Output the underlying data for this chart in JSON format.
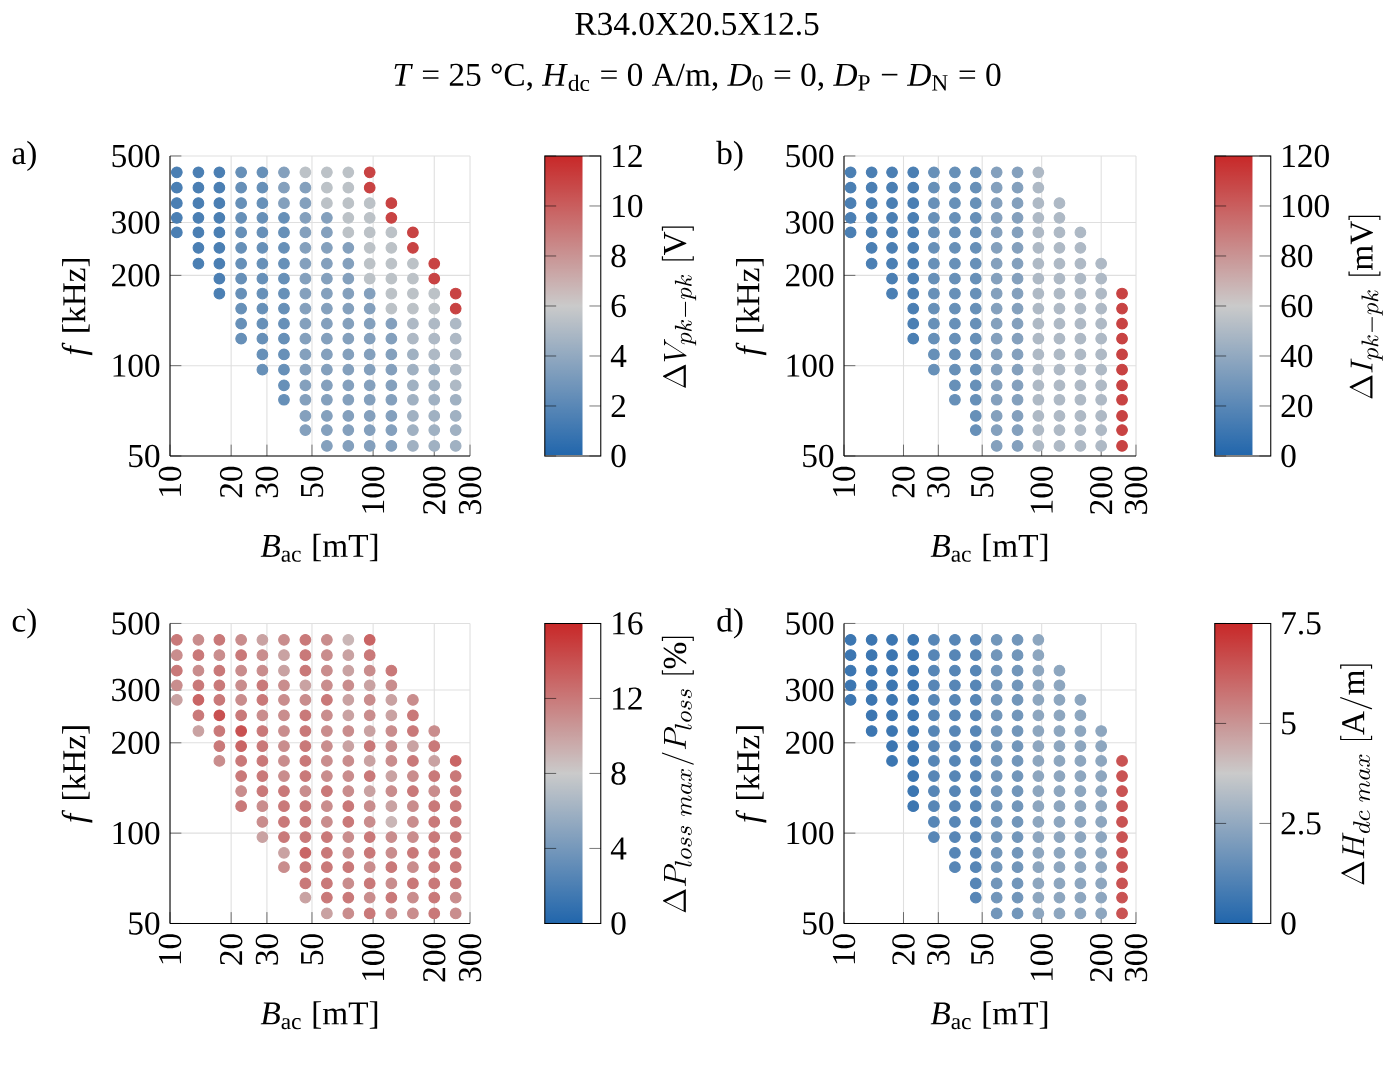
{
  "chart_data": [
    {
      "type": "other",
      "title": "R34.0X20.5X12.5",
      "subtitle": "*T* = 25 °C, *H*$_{dc}$ = 0 A/m, *D*$_{0}$ = 0, *D*$_{P}$ − *D*$_{N}$ = 0"
    },
    {
      "type": "scatter",
      "annotations": [
        "a)"
      ],
      "xlabel": "*B*$_{ac}$ [mT]",
      "ylabel": "*f* [kHz]",
      "clabel": "\\Delta V_{pk-pk}\\ [\\mathrm{V}]",
      "log": "xy",
      "grid": true,
      "marker": "circle",
      "xlim": [
        10,
        300
      ],
      "ylim": [
        50,
        500
      ],
      "xticks": [
        10,
        20,
        30,
        50,
        100,
        200,
        300
      ],
      "yticks": [
        50,
        100,
        200,
        300,
        500
      ],
      "clim": [
        0,
        12
      ],
      "cticks": [
        0,
        2,
        4,
        6,
        8,
        10,
        12
      ],
      "x": [
        10.8,
        13.8,
        17.5,
        22.4,
        28.5,
        36.4,
        46.4,
        59.2,
        75.5,
        96.2,
        10.8,
        13.8,
        17.5,
        22.4,
        28.5,
        36.4,
        46.4,
        59.2,
        75.5,
        96.2,
        10.8,
        13.8,
        17.5,
        22.4,
        28.5,
        36.4,
        46.4,
        59.2,
        75.5,
        96.2,
        123,
        10.8,
        13.8,
        17.5,
        22.4,
        28.5,
        36.4,
        46.4,
        59.2,
        75.5,
        96.2,
        123,
        10.8,
        13.8,
        17.5,
        22.4,
        28.5,
        36.4,
        46.4,
        59.2,
        75.5,
        96.2,
        123,
        157,
        13.8,
        17.5,
        22.4,
        28.5,
        36.4,
        46.4,
        59.2,
        75.5,
        96.2,
        123,
        157,
        13.8,
        17.5,
        22.4,
        28.5,
        36.4,
        46.4,
        59.2,
        75.5,
        96.2,
        123,
        157,
        200,
        17.5,
        22.4,
        28.5,
        36.4,
        46.4,
        59.2,
        75.5,
        96.2,
        123,
        157,
        200,
        17.5,
        22.4,
        28.5,
        36.4,
        46.4,
        59.2,
        75.5,
        96.2,
        123,
        157,
        200,
        255,
        22.4,
        28.5,
        36.4,
        46.4,
        59.2,
        75.5,
        96.2,
        123,
        157,
        200,
        255,
        22.4,
        28.5,
        36.4,
        46.4,
        59.2,
        75.5,
        96.2,
        123,
        157,
        200,
        255,
        22.4,
        28.5,
        36.4,
        46.4,
        59.2,
        75.5,
        96.2,
        123,
        157,
        200,
        255,
        28.5,
        36.4,
        46.4,
        59.2,
        75.5,
        96.2,
        123,
        157,
        200,
        255,
        28.5,
        36.4,
        46.4,
        59.2,
        75.5,
        96.2,
        123,
        157,
        200,
        255,
        36.4,
        46.4,
        59.2,
        75.5,
        96.2,
        123,
        157,
        200,
        255,
        36.4,
        46.4,
        59.2,
        75.5,
        96.2,
        123,
        157,
        200,
        255,
        46.4,
        59.2,
        75.5,
        96.2,
        123,
        157,
        200,
        255,
        46.4,
        59.2,
        75.5,
        96.2,
        123,
        157,
        200,
        255,
        59.2,
        75.5,
        96.2,
        123,
        157,
        200,
        255
      ],
      "values": [
        441,
        441,
        441,
        441,
        441,
        441,
        441,
        441,
        441,
        441,
        392,
        392,
        392,
        392,
        392,
        392,
        392,
        392,
        392,
        392,
        348,
        348,
        348,
        348,
        348,
        348,
        348,
        348,
        348,
        348,
        348,
        311,
        311,
        311,
        311,
        311,
        311,
        311,
        311,
        311,
        311,
        311,
        278,
        278,
        278,
        278,
        278,
        278,
        278,
        278,
        278,
        278,
        278,
        278,
        247,
        247,
        247,
        247,
        247,
        247,
        247,
        247,
        247,
        247,
        247,
        219,
        219,
        219,
        219,
        219,
        219,
        219,
        219,
        219,
        219,
        219,
        219,
        195,
        195,
        195,
        195,
        195,
        195,
        195,
        195,
        195,
        195,
        195,
        174,
        174,
        174,
        174,
        174,
        174,
        174,
        174,
        174,
        174,
        174,
        174,
        155,
        155,
        155,
        155,
        155,
        155,
        155,
        155,
        155,
        155,
        155,
        138,
        138,
        138,
        138,
        138,
        138,
        138,
        138,
        138,
        138,
        138,
        123,
        123,
        123,
        123,
        123,
        123,
        123,
        123,
        123,
        123,
        123,
        109,
        109,
        109,
        109,
        109,
        109,
        109,
        109,
        109,
        109,
        97,
        97,
        97,
        97,
        97,
        97,
        97,
        97,
        97,
        97,
        86,
        86,
        86,
        86,
        86,
        86,
        86,
        86,
        86,
        77,
        77,
        77,
        77,
        77,
        77,
        77,
        77,
        77,
        68,
        68,
        68,
        68,
        68,
        68,
        68,
        68,
        61,
        61,
        61,
        61,
        61,
        61,
        61,
        61,
        54,
        54,
        54,
        54,
        54,
        54,
        54
      ],
      "cvalues": [
        1.5,
        1.5,
        1.5,
        2.5,
        2.5,
        3.5,
        5.5,
        5.5,
        5.5,
        11,
        1.5,
        1.5,
        1.5,
        2.5,
        2.5,
        3.5,
        3.5,
        5.5,
        5.5,
        11,
        1.5,
        1.5,
        1.5,
        2.5,
        2.5,
        3.5,
        3.5,
        5.5,
        5.5,
        5.5,
        11,
        1.5,
        1.5,
        1.5,
        2.5,
        2.5,
        2.5,
        3.5,
        3.5,
        5.5,
        5.5,
        11,
        1.5,
        1.5,
        1.5,
        2.5,
        2.5,
        2.5,
        3.5,
        3.5,
        5.5,
        5.5,
        5.5,
        11,
        1.5,
        1.5,
        2.5,
        2.5,
        2.5,
        3.5,
        3.5,
        3.5,
        5.5,
        5.5,
        11,
        1.5,
        1.5,
        2.5,
        2.5,
        2.5,
        3.5,
        3.5,
        3.5,
        5.5,
        5.5,
        5.5,
        11,
        1.5,
        2.5,
        2.5,
        2.5,
        3.5,
        3.5,
        3.5,
        5.5,
        5.5,
        5.5,
        11,
        1.5,
        2.5,
        2.5,
        2.5,
        3.5,
        3.5,
        3.5,
        3.5,
        5.5,
        5.5,
        5.5,
        11,
        2.5,
        2.5,
        2.5,
        3.5,
        3.5,
        3.5,
        3.5,
        5.5,
        5.5,
        5.5,
        11,
        2.5,
        2.5,
        2.5,
        3.5,
        3.5,
        3.5,
        3.5,
        3.5,
        5,
        5,
        5,
        2.5,
        2.5,
        2.5,
        3.5,
        3.5,
        3.5,
        3.5,
        3.5,
        5,
        5,
        5,
        2.5,
        2.5,
        3.5,
        3.5,
        3.5,
        3.5,
        3.5,
        4.5,
        5,
        5,
        2.5,
        2.5,
        3.5,
        3.5,
        3.5,
        3.5,
        3.5,
        4.5,
        4.5,
        5,
        2.5,
        3.5,
        3.5,
        3.5,
        3.5,
        3.5,
        4.5,
        4.5,
        5,
        2.5,
        3.5,
        3.5,
        3.5,
        3.5,
        3.5,
        4.5,
        4.5,
        4.5,
        3.5,
        3.5,
        3.5,
        3.5,
        3.5,
        4.5,
        4.5,
        4.5,
        3.5,
        3.5,
        3.5,
        3.5,
        3.5,
        4.5,
        4.5,
        4.5,
        3.5,
        3.5,
        3.5,
        3.5,
        4.5,
        4.5,
        4.5
      ]
    },
    {
      "type": "scatter",
      "annotations": [
        "b)"
      ],
      "xlabel": "*B*$_{ac}$ [mT]",
      "ylabel": "*f* [kHz]",
      "clabel": "\\Delta I_{pk-pk}\\ [\\mathrm{mV}]",
      "log": "xy",
      "grid": true,
      "marker": "circle",
      "xlim": [
        10,
        300
      ],
      "ylim": [
        50,
        500
      ],
      "xticks": [
        10,
        20,
        30,
        50,
        100,
        200,
        300
      ],
      "yticks": [
        50,
        100,
        200,
        300,
        500
      ],
      "clim": [
        0,
        120
      ],
      "cticks": [
        0,
        20,
        40,
        60,
        80,
        100,
        120
      ],
      "x": [
        10.8,
        13.8,
        17.5,
        22.4,
        28.5,
        36.4,
        46.4,
        59.2,
        75.5,
        96.2,
        10.8,
        13.8,
        17.5,
        22.4,
        28.5,
        36.4,
        46.4,
        59.2,
        75.5,
        96.2,
        10.8,
        13.8,
        17.5,
        22.4,
        28.5,
        36.4,
        46.4,
        59.2,
        75.5,
        96.2,
        123,
        10.8,
        13.8,
        17.5,
        22.4,
        28.5,
        36.4,
        46.4,
        59.2,
        75.5,
        96.2,
        123,
        10.8,
        13.8,
        17.5,
        22.4,
        28.5,
        36.4,
        46.4,
        59.2,
        75.5,
        96.2,
        123,
        157,
        13.8,
        17.5,
        22.4,
        28.5,
        36.4,
        46.4,
        59.2,
        75.5,
        96.2,
        123,
        157,
        13.8,
        17.5,
        22.4,
        28.5,
        36.4,
        46.4,
        59.2,
        75.5,
        96.2,
        123,
        157,
        200,
        17.5,
        22.4,
        28.5,
        36.4,
        46.4,
        59.2,
        75.5,
        96.2,
        123,
        157,
        200,
        17.5,
        22.4,
        28.5,
        36.4,
        46.4,
        59.2,
        75.5,
        96.2,
        123,
        157,
        200,
        255,
        22.4,
        28.5,
        36.4,
        46.4,
        59.2,
        75.5,
        96.2,
        123,
        157,
        200,
        255,
        22.4,
        28.5,
        36.4,
        46.4,
        59.2,
        75.5,
        96.2,
        123,
        157,
        200,
        255,
        22.4,
        28.5,
        36.4,
        46.4,
        59.2,
        75.5,
        96.2,
        123,
        157,
        200,
        255,
        28.5,
        36.4,
        46.4,
        59.2,
        75.5,
        96.2,
        123,
        157,
        200,
        255,
        28.5,
        36.4,
        46.4,
        59.2,
        75.5,
        96.2,
        123,
        157,
        200,
        255,
        36.4,
        46.4,
        59.2,
        75.5,
        96.2,
        123,
        157,
        200,
        255,
        36.4,
        46.4,
        59.2,
        75.5,
        96.2,
        123,
        157,
        200,
        255,
        46.4,
        59.2,
        75.5,
        96.2,
        123,
        157,
        200,
        255,
        46.4,
        59.2,
        75.5,
        96.2,
        123,
        157,
        200,
        255,
        59.2,
        75.5,
        96.2,
        123,
        157,
        200,
        255
      ],
      "values": [
        441,
        441,
        441,
        441,
        441,
        441,
        441,
        441,
        441,
        441,
        392,
        392,
        392,
        392,
        392,
        392,
        392,
        392,
        392,
        392,
        348,
        348,
        348,
        348,
        348,
        348,
        348,
        348,
        348,
        348,
        348,
        311,
        311,
        311,
        311,
        311,
        311,
        311,
        311,
        311,
        311,
        311,
        278,
        278,
        278,
        278,
        278,
        278,
        278,
        278,
        278,
        278,
        278,
        278,
        247,
        247,
        247,
        247,
        247,
        247,
        247,
        247,
        247,
        247,
        247,
        219,
        219,
        219,
        219,
        219,
        219,
        219,
        219,
        219,
        219,
        219,
        219,
        195,
        195,
        195,
        195,
        195,
        195,
        195,
        195,
        195,
        195,
        195,
        174,
        174,
        174,
        174,
        174,
        174,
        174,
        174,
        174,
        174,
        174,
        174,
        155,
        155,
        155,
        155,
        155,
        155,
        155,
        155,
        155,
        155,
        155,
        138,
        138,
        138,
        138,
        138,
        138,
        138,
        138,
        138,
        138,
        138,
        123,
        123,
        123,
        123,
        123,
        123,
        123,
        123,
        123,
        123,
        123,
        109,
        109,
        109,
        109,
        109,
        109,
        109,
        109,
        109,
        109,
        97,
        97,
        97,
        97,
        97,
        97,
        97,
        97,
        97,
        97,
        86,
        86,
        86,
        86,
        86,
        86,
        86,
        86,
        86,
        77,
        77,
        77,
        77,
        77,
        77,
        77,
        77,
        77,
        68,
        68,
        68,
        68,
        68,
        68,
        68,
        68,
        61,
        61,
        61,
        61,
        61,
        61,
        61,
        61,
        54,
        54,
        54,
        54,
        54,
        54,
        54
      ],
      "cvalues": [
        15,
        15,
        15,
        15,
        25,
        25,
        25,
        35,
        35,
        50,
        15,
        15,
        15,
        15,
        25,
        25,
        25,
        35,
        35,
        50,
        15,
        15,
        15,
        15,
        25,
        25,
        25,
        35,
        35,
        50,
        50,
        15,
        15,
        15,
        15,
        25,
        25,
        25,
        35,
        35,
        50,
        50,
        15,
        15,
        15,
        15,
        25,
        25,
        25,
        35,
        35,
        50,
        50,
        50,
        15,
        15,
        15,
        25,
        25,
        25,
        35,
        35,
        50,
        50,
        50,
        15,
        15,
        15,
        25,
        25,
        25,
        35,
        35,
        50,
        50,
        50,
        50,
        15,
        15,
        25,
        25,
        25,
        35,
        35,
        50,
        50,
        50,
        50,
        15,
        15,
        25,
        25,
        25,
        35,
        35,
        50,
        50,
        50,
        50,
        110,
        15,
        25,
        25,
        25,
        35,
        35,
        50,
        50,
        50,
        50,
        110,
        15,
        25,
        25,
        25,
        35,
        35,
        50,
        50,
        50,
        50,
        110,
        15,
        25,
        25,
        25,
        35,
        35,
        50,
        50,
        50,
        50,
        110,
        25,
        25,
        25,
        35,
        35,
        50,
        50,
        50,
        50,
        110,
        25,
        25,
        25,
        35,
        35,
        50,
        50,
        50,
        50,
        110,
        25,
        25,
        35,
        35,
        50,
        50,
        50,
        50,
        110,
        25,
        25,
        35,
        35,
        50,
        50,
        50,
        50,
        110,
        25,
        35,
        35,
        50,
        50,
        50,
        50,
        110,
        25,
        35,
        35,
        50,
        50,
        50,
        50,
        110,
        35,
        35,
        50,
        50,
        50,
        50,
        110
      ]
    },
    {
      "type": "scatter",
      "annotations": [
        "c)"
      ],
      "xlabel": "*B*$_{ac}$ [mT]",
      "ylabel": "*f* [kHz]",
      "clabel": "\\Delta P_{loss\\ max}/P_{loss}\\ [\\%]",
      "log": "xy",
      "grid": true,
      "marker": "circle",
      "xlim": [
        10,
        300
      ],
      "ylim": [
        50,
        500
      ],
      "xticks": [
        10,
        20,
        30,
        50,
        100,
        200,
        300
      ],
      "yticks": [
        50,
        100,
        200,
        300,
        500
      ],
      "clim": [
        0,
        16
      ],
      "cticks": [
        0,
        4,
        8,
        12,
        16
      ],
      "x": [
        10.8,
        13.8,
        17.5,
        22.4,
        28.5,
        36.4,
        46.4,
        59.2,
        75.5,
        96.2,
        10.8,
        13.8,
        17.5,
        22.4,
        28.5,
        36.4,
        46.4,
        59.2,
        75.5,
        96.2,
        10.8,
        13.8,
        17.5,
        22.4,
        28.5,
        36.4,
        46.4,
        59.2,
        75.5,
        96.2,
        123,
        10.8,
        13.8,
        17.5,
        22.4,
        28.5,
        36.4,
        46.4,
        59.2,
        75.5,
        96.2,
        123,
        10.8,
        13.8,
        17.5,
        22.4,
        28.5,
        36.4,
        46.4,
        59.2,
        75.5,
        96.2,
        123,
        157,
        13.8,
        17.5,
        22.4,
        28.5,
        36.4,
        46.4,
        59.2,
        75.5,
        96.2,
        123,
        157,
        13.8,
        17.5,
        22.4,
        28.5,
        36.4,
        46.4,
        59.2,
        75.5,
        96.2,
        123,
        157,
        200,
        17.5,
        22.4,
        28.5,
        36.4,
        46.4,
        59.2,
        75.5,
        96.2,
        123,
        157,
        200,
        17.5,
        22.4,
        28.5,
        36.4,
        46.4,
        59.2,
        75.5,
        96.2,
        123,
        157,
        200,
        255,
        22.4,
        28.5,
        36.4,
        46.4,
        59.2,
        75.5,
        96.2,
        123,
        157,
        200,
        255,
        22.4,
        28.5,
        36.4,
        46.4,
        59.2,
        75.5,
        96.2,
        123,
        157,
        200,
        255,
        22.4,
        28.5,
        36.4,
        46.4,
        59.2,
        75.5,
        96.2,
        123,
        157,
        200,
        255,
        28.5,
        36.4,
        46.4,
        59.2,
        75.5,
        96.2,
        123,
        157,
        200,
        255,
        28.5,
        36.4,
        46.4,
        59.2,
        75.5,
        96.2,
        123,
        157,
        200,
        255,
        36.4,
        46.4,
        59.2,
        75.5,
        96.2,
        123,
        157,
        200,
        255,
        36.4,
        46.4,
        59.2,
        75.5,
        96.2,
        123,
        157,
        200,
        255,
        46.4,
        59.2,
        75.5,
        96.2,
        123,
        157,
        200,
        255,
        46.4,
        59.2,
        75.5,
        96.2,
        123,
        157,
        200,
        255,
        59.2,
        75.5,
        96.2,
        123,
        157,
        200,
        255
      ],
      "values": [
        441,
        441,
        441,
        441,
        441,
        441,
        441,
        441,
        441,
        441,
        392,
        392,
        392,
        392,
        392,
        392,
        392,
        392,
        392,
        392,
        348,
        348,
        348,
        348,
        348,
        348,
        348,
        348,
        348,
        348,
        348,
        311,
        311,
        311,
        311,
        311,
        311,
        311,
        311,
        311,
        311,
        311,
        278,
        278,
        278,
        278,
        278,
        278,
        278,
        278,
        278,
        278,
        278,
        278,
        247,
        247,
        247,
        247,
        247,
        247,
        247,
        247,
        247,
        247,
        247,
        219,
        219,
        219,
        219,
        219,
        219,
        219,
        219,
        219,
        219,
        219,
        219,
        195,
        195,
        195,
        195,
        195,
        195,
        195,
        195,
        195,
        195,
        195,
        174,
        174,
        174,
        174,
        174,
        174,
        174,
        174,
        174,
        174,
        174,
        174,
        155,
        155,
        155,
        155,
        155,
        155,
        155,
        155,
        155,
        155,
        155,
        138,
        138,
        138,
        138,
        138,
        138,
        138,
        138,
        138,
        138,
        138,
        123,
        123,
        123,
        123,
        123,
        123,
        123,
        123,
        123,
        123,
        123,
        109,
        109,
        109,
        109,
        109,
        109,
        109,
        109,
        109,
        109,
        97,
        97,
        97,
        97,
        97,
        97,
        97,
        97,
        97,
        97,
        86,
        86,
        86,
        86,
        86,
        86,
        86,
        86,
        86,
        77,
        77,
        77,
        77,
        77,
        77,
        77,
        77,
        77,
        68,
        68,
        68,
        68,
        68,
        68,
        68,
        68,
        61,
        61,
        61,
        61,
        61,
        61,
        61,
        61,
        54,
        54,
        54,
        54,
        54,
        54,
        54
      ],
      "cvalues": [
        12,
        11,
        12,
        11,
        10,
        11,
        12,
        11,
        9,
        13,
        11,
        12,
        11,
        12,
        11,
        10,
        12,
        11,
        10,
        12,
        12,
        11,
        12,
        11,
        11,
        10,
        12,
        11,
        10,
        11,
        12,
        11,
        12,
        12,
        11,
        12,
        11,
        10,
        11,
        11,
        10,
        11,
        10,
        13,
        12,
        11,
        12,
        11,
        11,
        12,
        10,
        11,
        10,
        11,
        12,
        14,
        12,
        11,
        11,
        12,
        11,
        10,
        11,
        10,
        12,
        10,
        12,
        14,
        12,
        11,
        12,
        11,
        11,
        10,
        11,
        12,
        11,
        12,
        13,
        12,
        11,
        12,
        11,
        10,
        12,
        11,
        10,
        12,
        11,
        12,
        12,
        11,
        12,
        11,
        11,
        10,
        11,
        12,
        10,
        13,
        12,
        12,
        11,
        12,
        11,
        11,
        12,
        10,
        11,
        12,
        12,
        11,
        12,
        12,
        11,
        12,
        11,
        10,
        11,
        12,
        11,
        12,
        12,
        11,
        12,
        12,
        11,
        12,
        11,
        10,
        11,
        12,
        12,
        11,
        12,
        12,
        11,
        12,
        11,
        9,
        11,
        12,
        12,
        10,
        12,
        12,
        12,
        11,
        12,
        11,
        11,
        12,
        12,
        10,
        13,
        12,
        11,
        12,
        11,
        12,
        12,
        12,
        11,
        12,
        12,
        12,
        11,
        12,
        11,
        12,
        12,
        12,
        12,
        11,
        12,
        11,
        12,
        12,
        12,
        10,
        12,
        12,
        11,
        12,
        11,
        12,
        11,
        10,
        11,
        12,
        11,
        11,
        12,
        11
      ]
    },
    {
      "type": "scatter",
      "annotations": [
        "d)"
      ],
      "xlabel": "*B*$_{ac}$ [mT]",
      "ylabel": "*f* [kHz]",
      "clabel": "\\Delta H_{dc\\ max}\\ [\\mathrm{A/m}]",
      "log": "xy",
      "grid": true,
      "marker": "circle",
      "xlim": [
        10,
        300
      ],
      "ylim": [
        50,
        500
      ],
      "xticks": [
        10,
        20,
        30,
        50,
        100,
        200,
        300
      ],
      "yticks": [
        50,
        100,
        200,
        300,
        500
      ],
      "clim": [
        0,
        7.5
      ],
      "cticks": [
        0,
        2.5,
        5,
        7.5
      ],
      "x": [
        10.8,
        13.8,
        17.5,
        22.4,
        28.5,
        36.4,
        46.4,
        59.2,
        75.5,
        96.2,
        10.8,
        13.8,
        17.5,
        22.4,
        28.5,
        36.4,
        46.4,
        59.2,
        75.5,
        96.2,
        10.8,
        13.8,
        17.5,
        22.4,
        28.5,
        36.4,
        46.4,
        59.2,
        75.5,
        96.2,
        123,
        10.8,
        13.8,
        17.5,
        22.4,
        28.5,
        36.4,
        46.4,
        59.2,
        75.5,
        96.2,
        123,
        10.8,
        13.8,
        17.5,
        22.4,
        28.5,
        36.4,
        46.4,
        59.2,
        75.5,
        96.2,
        123,
        157,
        13.8,
        17.5,
        22.4,
        28.5,
        36.4,
        46.4,
        59.2,
        75.5,
        96.2,
        123,
        157,
        13.8,
        17.5,
        22.4,
        28.5,
        36.4,
        46.4,
        59.2,
        75.5,
        96.2,
        123,
        157,
        200,
        17.5,
        22.4,
        28.5,
        36.4,
        46.4,
        59.2,
        75.5,
        96.2,
        123,
        157,
        200,
        17.5,
        22.4,
        28.5,
        36.4,
        46.4,
        59.2,
        75.5,
        96.2,
        123,
        157,
        200,
        255,
        22.4,
        28.5,
        36.4,
        46.4,
        59.2,
        75.5,
        96.2,
        123,
        157,
        200,
        255,
        22.4,
        28.5,
        36.4,
        46.4,
        59.2,
        75.5,
        96.2,
        123,
        157,
        200,
        255,
        22.4,
        28.5,
        36.4,
        46.4,
        59.2,
        75.5,
        96.2,
        123,
        157,
        200,
        255,
        28.5,
        36.4,
        46.4,
        59.2,
        75.5,
        96.2,
        123,
        157,
        200,
        255,
        28.5,
        36.4,
        46.4,
        59.2,
        75.5,
        96.2,
        123,
        157,
        200,
        255,
        36.4,
        46.4,
        59.2,
        75.5,
        96.2,
        123,
        157,
        200,
        255,
        36.4,
        46.4,
        59.2,
        75.5,
        96.2,
        123,
        157,
        200,
        255,
        46.4,
        59.2,
        75.5,
        96.2,
        123,
        157,
        200,
        255,
        46.4,
        59.2,
        75.5,
        96.2,
        123,
        157,
        200,
        255,
        59.2,
        75.5,
        96.2,
        123,
        157,
        200,
        255
      ],
      "values": [
        441,
        441,
        441,
        441,
        441,
        441,
        441,
        441,
        441,
        441,
        392,
        392,
        392,
        392,
        392,
        392,
        392,
        392,
        392,
        392,
        348,
        348,
        348,
        348,
        348,
        348,
        348,
        348,
        348,
        348,
        348,
        311,
        311,
        311,
        311,
        311,
        311,
        311,
        311,
        311,
        311,
        311,
        278,
        278,
        278,
        278,
        278,
        278,
        278,
        278,
        278,
        278,
        278,
        278,
        247,
        247,
        247,
        247,
        247,
        247,
        247,
        247,
        247,
        247,
        247,
        219,
        219,
        219,
        219,
        219,
        219,
        219,
        219,
        219,
        219,
        219,
        219,
        195,
        195,
        195,
        195,
        195,
        195,
        195,
        195,
        195,
        195,
        195,
        174,
        174,
        174,
        174,
        174,
        174,
        174,
        174,
        174,
        174,
        174,
        174,
        155,
        155,
        155,
        155,
        155,
        155,
        155,
        155,
        155,
        155,
        155,
        138,
        138,
        138,
        138,
        138,
        138,
        138,
        138,
        138,
        138,
        138,
        123,
        123,
        123,
        123,
        123,
        123,
        123,
        123,
        123,
        123,
        123,
        109,
        109,
        109,
        109,
        109,
        109,
        109,
        109,
        109,
        109,
        97,
        97,
        97,
        97,
        97,
        97,
        97,
        97,
        97,
        97,
        86,
        86,
        86,
        86,
        86,
        86,
        86,
        86,
        86,
        77,
        77,
        77,
        77,
        77,
        77,
        77,
        77,
        77,
        68,
        68,
        68,
        68,
        68,
        68,
        68,
        68,
        61,
        61,
        61,
        61,
        61,
        61,
        61,
        61,
        54,
        54,
        54,
        54,
        54,
        54,
        54
      ],
      "cvalues": [
        0.6,
        0.6,
        0.6,
        0.6,
        1.2,
        1.2,
        1.2,
        1.8,
        1.8,
        2.4,
        0.6,
        0.6,
        0.6,
        0.6,
        1.2,
        1.2,
        1.2,
        1.8,
        1.8,
        2.4,
        0.6,
        0.6,
        0.6,
        0.6,
        1.2,
        1.2,
        1.2,
        1.8,
        1.8,
        2.4,
        2.4,
        0.6,
        0.6,
        0.6,
        0.6,
        1.2,
        1.2,
        1.2,
        1.8,
        1.8,
        2.4,
        2.4,
        0.6,
        0.6,
        0.6,
        0.6,
        1.2,
        1.2,
        1.2,
        1.8,
        1.8,
        2.4,
        2.4,
        2.4,
        0.6,
        0.6,
        0.6,
        1.2,
        1.2,
        1.2,
        1.8,
        1.8,
        2.4,
        2.4,
        2.4,
        0.6,
        0.6,
        0.6,
        1.2,
        1.2,
        1.2,
        1.8,
        1.8,
        2.4,
        2.4,
        2.4,
        2.4,
        0.6,
        0.6,
        1.2,
        1.2,
        1.2,
        1.8,
        1.8,
        2.4,
        2.4,
        2.4,
        2.4,
        0.6,
        0.6,
        1.2,
        1.2,
        1.2,
        1.8,
        1.8,
        2.4,
        2.4,
        2.4,
        2.4,
        6.5,
        0.6,
        1.2,
        1.2,
        1.2,
        1.8,
        1.8,
        2.4,
        2.4,
        2.4,
        2.4,
        6.5,
        0.6,
        1.2,
        1.2,
        1.2,
        1.8,
        1.8,
        2.4,
        2.4,
        2.4,
        2.4,
        6.5,
        0.6,
        1.2,
        1.2,
        1.2,
        1.8,
        1.8,
        2.4,
        2.4,
        2.4,
        2.4,
        6.5,
        1.2,
        1.2,
        1.2,
        1.8,
        1.8,
        2.4,
        2.4,
        2.4,
        2.4,
        6.5,
        1.2,
        1.2,
        1.2,
        1.8,
        1.8,
        2.4,
        2.4,
        2.4,
        2.4,
        6.5,
        1.2,
        1.2,
        1.8,
        1.8,
        2.4,
        2.4,
        2.4,
        2.4,
        6.5,
        1.2,
        1.2,
        1.8,
        1.8,
        2.4,
        2.4,
        2.4,
        2.4,
        6.5,
        1.2,
        1.8,
        1.8,
        2.4,
        2.4,
        2.4,
        2.4,
        6.5,
        1.2,
        1.8,
        1.8,
        2.4,
        2.4,
        2.4,
        2.4,
        6.5,
        1.8,
        1.8,
        2.4,
        2.4,
        2.4,
        2.4,
        6.5
      ]
    }
  ]
}
